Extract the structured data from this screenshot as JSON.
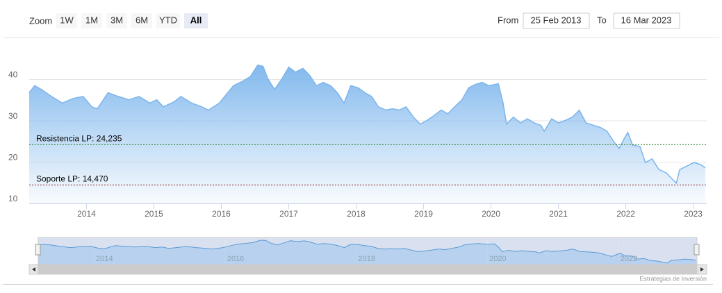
{
  "ui": {
    "zoom_label": "Zoom",
    "zoom_buttons": [
      {
        "label": "1W"
      },
      {
        "label": "1M"
      },
      {
        "label": "3M"
      },
      {
        "label": "6M"
      },
      {
        "label": "YTD"
      },
      {
        "label": "All",
        "active": true
      }
    ],
    "from_label": "From",
    "from_value": "25 Feb 2013",
    "to_label": "To",
    "to_value": "16 Mar 2023"
  },
  "chart_data": {
    "type": "area",
    "color": "#7cb5ec",
    "x": [
      2013.15,
      2013.23,
      2013.33,
      2013.48,
      2013.64,
      2013.8,
      2013.95,
      2014.08,
      2014.16,
      2014.32,
      2014.47,
      2014.63,
      2014.78,
      2014.94,
      2015.04,
      2015.14,
      2015.3,
      2015.4,
      2015.56,
      2015.71,
      2015.81,
      2015.97,
      2016.07,
      2016.18,
      2016.33,
      2016.43,
      2016.54,
      2016.62,
      2016.69,
      2016.79,
      2016.9,
      2017.0,
      2017.1,
      2017.21,
      2017.31,
      2017.41,
      2017.51,
      2017.62,
      2017.72,
      2017.82,
      2017.92,
      2018.03,
      2018.13,
      2018.23,
      2018.33,
      2018.44,
      2018.54,
      2018.64,
      2018.74,
      2018.85,
      2018.95,
      2019.05,
      2019.15,
      2019.26,
      2019.36,
      2019.46,
      2019.57,
      2019.67,
      2019.77,
      2019.87,
      2019.97,
      2020.11,
      2020.18,
      2020.23,
      2020.33,
      2020.44,
      2020.54,
      2020.64,
      2020.74,
      2020.79,
      2020.9,
      2021.0,
      2021.1,
      2021.21,
      2021.31,
      2021.41,
      2021.52,
      2021.62,
      2021.72,
      2021.82,
      2021.9,
      2021.98,
      2022.03,
      2022.1,
      2022.21,
      2022.29,
      2022.39,
      2022.49,
      2022.6,
      2022.7,
      2022.75,
      2022.8,
      2022.91,
      2023.01,
      2023.11,
      2023.18
    ],
    "values": [
      36.8,
      38.5,
      37.6,
      35.9,
      34.3,
      35.4,
      35.9,
      33.4,
      32.9,
      36.8,
      35.9,
      35.1,
      35.9,
      34.3,
      35.1,
      33.4,
      34.6,
      35.9,
      34.3,
      33.4,
      32.6,
      34.3,
      36.3,
      38.5,
      39.7,
      40.7,
      43.5,
      43.2,
      40.2,
      37.6,
      40.2,
      43.0,
      41.8,
      42.7,
      41.0,
      38.5,
      39.3,
      38.5,
      36.8,
      34.3,
      38.5,
      38.0,
      36.8,
      35.9,
      33.4,
      32.6,
      32.9,
      32.6,
      33.4,
      30.9,
      29.2,
      30.1,
      31.2,
      32.6,
      31.7,
      33.4,
      35.1,
      38.0,
      38.8,
      39.3,
      38.5,
      39.0,
      34.3,
      29.2,
      30.9,
      29.5,
      30.5,
      29.5,
      28.9,
      27.5,
      30.5,
      29.5,
      30.1,
      30.9,
      32.6,
      29.5,
      28.9,
      28.4,
      27.5,
      25.0,
      23.3,
      25.8,
      27.2,
      24.1,
      23.8,
      19.9,
      20.8,
      18.2,
      17.4,
      15.7,
      14.9,
      18.2,
      19.1,
      19.9,
      19.4,
      18.6
    ],
    "xlim": [
      2013.15,
      2023.2
    ],
    "xticks": [
      2014,
      2015,
      2016,
      2017,
      2018,
      2019,
      2020,
      2021,
      2022,
      2023
    ],
    "ylim": [
      10,
      50
    ],
    "yticks": [
      10,
      20,
      30,
      40
    ],
    "grid": true,
    "plot_lines": [
      {
        "value": 24.235,
        "label": "Resistencia LP: 24,235",
        "color": "#1e7b1e"
      },
      {
        "value": 14.47,
        "label": "Soporte LP: 14,470",
        "color": "#8b1a1a"
      }
    ]
  },
  "navigator": {
    "xticks": [
      2014,
      2016,
      2018,
      2020,
      2022
    ]
  },
  "credits": "Estrategias de Inversión"
}
